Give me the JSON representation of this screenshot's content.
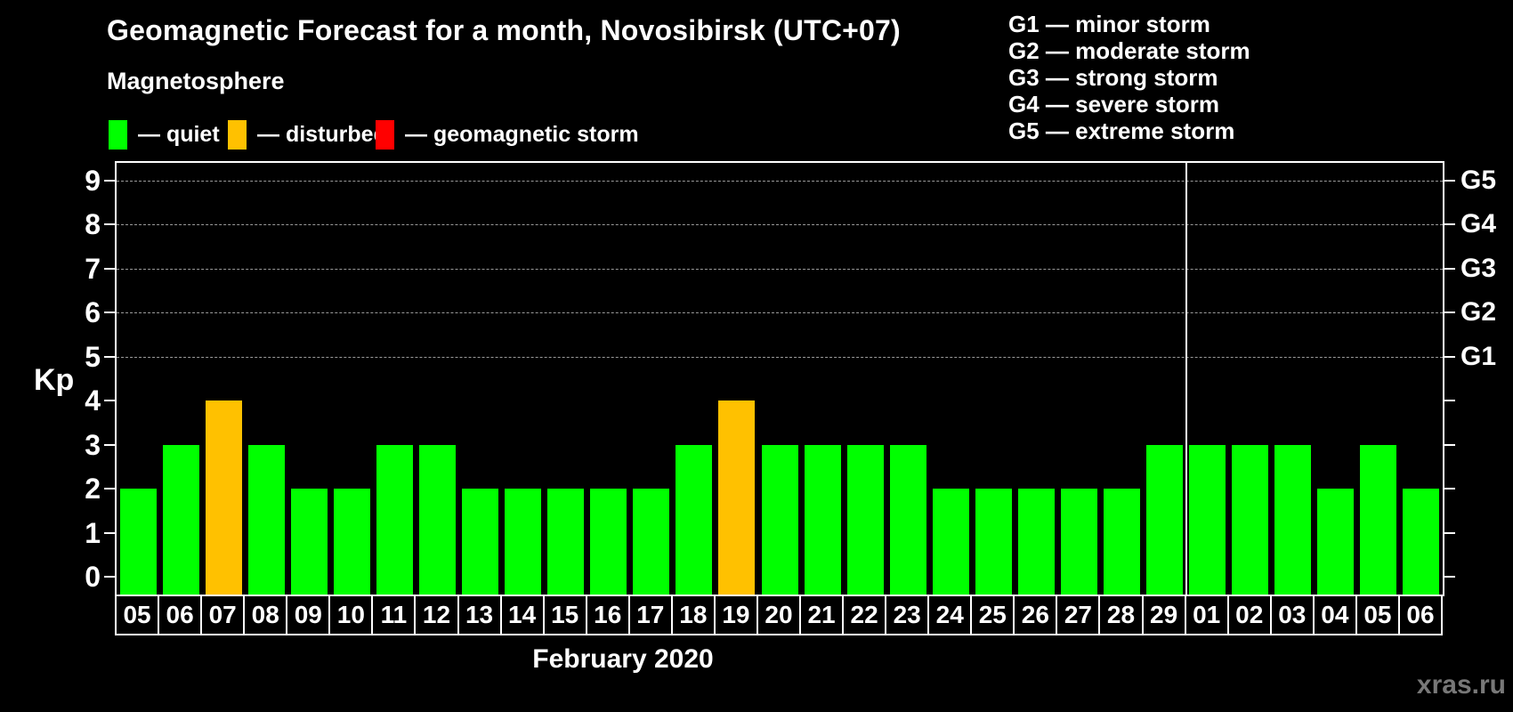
{
  "title": "Geomagnetic Forecast for a month, Novosibirsk (UTC+07)",
  "subtitle": "Magnetosphere",
  "legend": {
    "items": [
      {
        "name": "quiet",
        "label": "— quiet",
        "color": "#00ff00"
      },
      {
        "name": "disturbed",
        "label": "— disturbed",
        "color": "#ffc100"
      },
      {
        "name": "storm",
        "label": "— geomagnetic storm",
        "color": "#ff0000"
      }
    ]
  },
  "g_legend": {
    "lines": [
      "G1 — minor storm",
      "G2 — moderate storm",
      "G3 — strong storm",
      "G4 — severe storm",
      "G5 — extreme storm"
    ]
  },
  "axis": {
    "y_left_label": "Kp",
    "y_left_ticks": [
      "0",
      "1",
      "2",
      "3",
      "4",
      "5",
      "6",
      "7",
      "8",
      "9"
    ],
    "y_right_labels": [
      {
        "label": "G1",
        "kp": 5
      },
      {
        "label": "G2",
        "kp": 6
      },
      {
        "label": "G3",
        "kp": 7
      },
      {
        "label": "G4",
        "kp": 8
      },
      {
        "label": "G5",
        "kp": 9
      }
    ],
    "x_label": "February 2020"
  },
  "watermark": "xras.ru",
  "colors": {
    "quiet": "#00ff00",
    "disturbed": "#ffc100",
    "storm": "#ff0000",
    "background": "#000000",
    "frame": "#ffffff",
    "gridline": "#9a9a9a",
    "watermark": "#787878"
  },
  "chart_data": {
    "type": "bar",
    "title": "Geomagnetic Forecast for a month, Novosibirsk (UTC+07)",
    "xlabel": "February 2020",
    "ylabel": "Kp",
    "ylim": [
      -0.4,
      9.4
    ],
    "grid": "horizontal dashed lines at Kp 5,6,7,8,9 only",
    "legend_position": "top-left swatches; G storm scale legend top-right",
    "categories": [
      "05",
      "06",
      "07",
      "08",
      "09",
      "10",
      "11",
      "12",
      "13",
      "14",
      "15",
      "16",
      "17",
      "18",
      "19",
      "20",
      "21",
      "22",
      "23",
      "24",
      "25",
      "26",
      "27",
      "28",
      "29",
      "01",
      "02",
      "03",
      "04",
      "05",
      "06"
    ],
    "values": [
      2,
      3,
      4,
      3,
      2,
      2,
      3,
      3,
      2,
      2,
      2,
      2,
      2,
      3,
      4,
      3,
      3,
      3,
      3,
      2,
      2,
      2,
      2,
      2,
      3,
      3,
      3,
      3,
      2,
      3,
      2
    ],
    "statuses": [
      "quiet",
      "quiet",
      "disturbed",
      "quiet",
      "quiet",
      "quiet",
      "quiet",
      "quiet",
      "quiet",
      "quiet",
      "quiet",
      "quiet",
      "quiet",
      "quiet",
      "disturbed",
      "quiet",
      "quiet",
      "quiet",
      "quiet",
      "quiet",
      "quiet",
      "quiet",
      "quiet",
      "quiet",
      "quiet",
      "quiet",
      "quiet",
      "quiet",
      "quiet",
      "quiet",
      "quiet"
    ],
    "month_boundary_after_index": 24,
    "right_axis": "G1..G5 aligned with Kp 5..9"
  }
}
